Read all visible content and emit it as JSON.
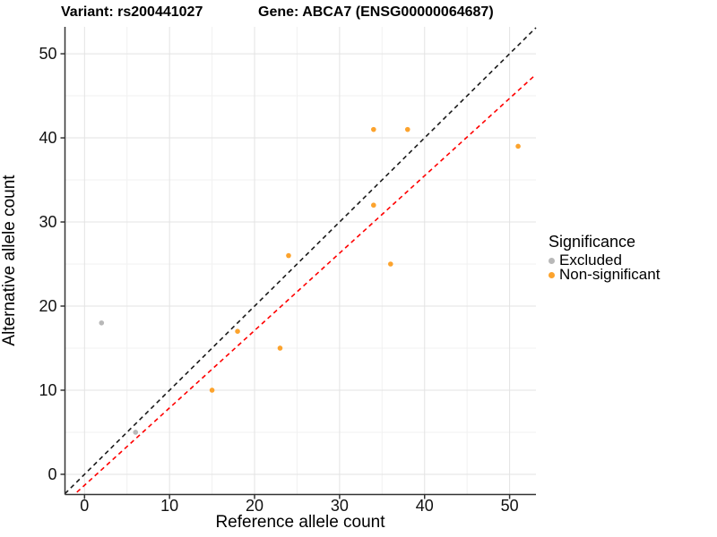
{
  "chart_data": {
    "type": "scatter",
    "title_variant": "Variant: rs200441027",
    "title_gene": "Gene: ABCA7 (ENSG00000064687)",
    "xlabel": "Reference allele count",
    "ylabel": "Alternative allele count",
    "xlim": [
      -2.3,
      53.1
    ],
    "ylim": [
      -2.4,
      53.2
    ],
    "xticks": [
      0,
      10,
      20,
      30,
      40,
      50
    ],
    "yticks": [
      0,
      10,
      20,
      30,
      40,
      50
    ],
    "minor_ticks": [
      5,
      15,
      25,
      35,
      45
    ],
    "grid": "major and minor gridlines on white background",
    "legend_position": "right",
    "legend": {
      "title": "Significance",
      "items": [
        {
          "label": "Excluded",
          "color": "#B8B8B8"
        },
        {
          "label": "Non-significant",
          "color": "#FCA32D"
        }
      ]
    },
    "series": [
      {
        "name": "Excluded",
        "color": "#B8B8B8",
        "points": [
          [
            2,
            18
          ],
          [
            6,
            5
          ]
        ]
      },
      {
        "name": "Non-significant",
        "color": "#FCA32D",
        "points": [
          [
            15,
            10
          ],
          [
            18,
            17
          ],
          [
            23,
            15
          ],
          [
            24,
            26
          ],
          [
            34,
            32
          ],
          [
            36,
            25
          ],
          [
            34,
            41
          ],
          [
            38,
            41
          ],
          [
            51,
            39
          ]
        ]
      }
    ],
    "lines": [
      {
        "name": "identity",
        "style": "dashed",
        "color": "#1A1A1A",
        "slope": 1,
        "intercept": 0
      },
      {
        "name": "fit",
        "style": "dashed",
        "color": "#FF0000",
        "slope": 0.92,
        "intercept": -1.3
      }
    ],
    "colors": {
      "grid_major": "#E3E3E3",
      "grid_minor": "#F1F1F1",
      "axis": "#333333",
      "point_radius": 2.8
    }
  }
}
